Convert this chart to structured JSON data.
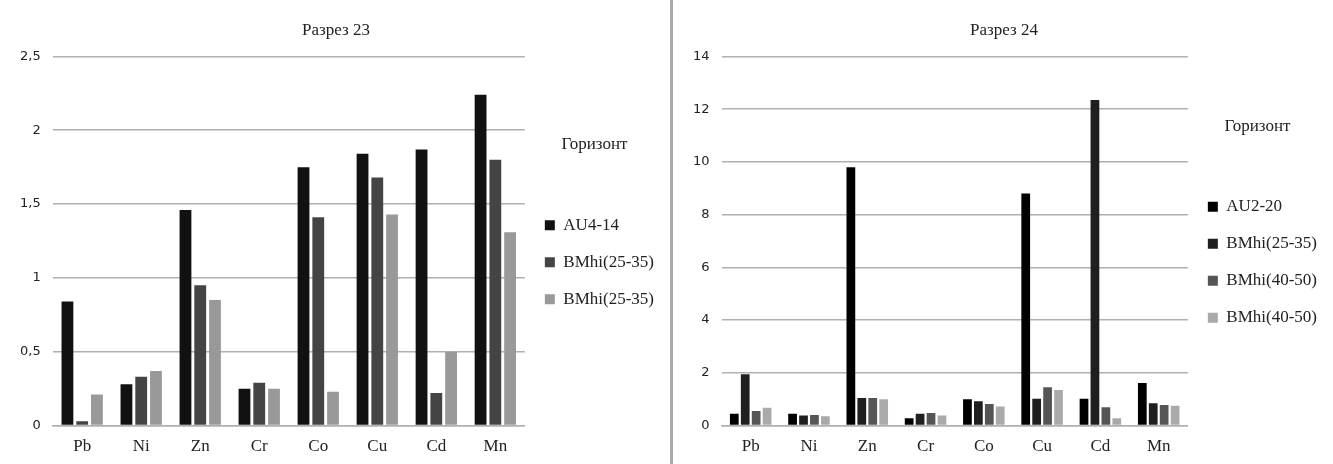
{
  "chart_data": [
    {
      "type": "bar",
      "title": "Разрез 23",
      "legend_title": "Горизонт",
      "categories": [
        "Pb",
        "Ni",
        "Zn",
        "Cr",
        "Co",
        "Cu",
        "Cd",
        "Mn"
      ],
      "series": [
        {
          "name": "AU4-14",
          "color": "#111111",
          "values": [
            0.84,
            0.28,
            1.46,
            0.25,
            1.75,
            1.84,
            1.87,
            2.24
          ]
        },
        {
          "name": "BMhi(25-35)",
          "color": "#444444",
          "values": [
            0.03,
            0.33,
            0.95,
            0.29,
            1.41,
            1.68,
            0.22,
            1.8
          ]
        },
        {
          "name": "BMhi(25-35)",
          "color": "#999999",
          "values": [
            0.21,
            0.37,
            0.85,
            0.25,
            0.23,
            1.43,
            0.5,
            1.31
          ]
        }
      ],
      "ylim": [
        0,
        2.5
      ],
      "yticks": [
        0,
        {
          "value": 0.5,
          "label": "0,5"
        },
        1,
        {
          "value": 1.5,
          "label": "1,5"
        },
        2,
        {
          "value": 2.5,
          "label": "2,5"
        }
      ],
      "grid": "y",
      "legend": "right"
    },
    {
      "type": "bar",
      "title": "Разрез 24",
      "legend_title": "Горизонт",
      "categories": [
        "Pb",
        "Ni",
        "Zn",
        "Cr",
        "Co",
        "Cu",
        "Cd",
        "Mn"
      ],
      "series": [
        {
          "name": "AU2-20",
          "color": "#000000",
          "values": [
            0.45,
            0.45,
            9.8,
            0.28,
            1.0,
            8.8,
            1.02,
            1.62
          ]
        },
        {
          "name": "BMhi(25-35)",
          "color": "#1f1f1f",
          "values": [
            1.95,
            0.38,
            1.05,
            0.45,
            0.92,
            1.02,
            12.35,
            0.85
          ]
        },
        {
          "name": "BMhi(40-50)",
          "color": "#555555",
          "values": [
            0.55,
            0.4,
            1.05,
            0.48,
            0.82,
            1.45,
            0.7,
            0.78
          ]
        },
        {
          "name": "BMhi(40-50)",
          "color": "#aaaaaa",
          "values": [
            0.68,
            0.35,
            1.0,
            0.38,
            0.72,
            1.35,
            0.28,
            0.75
          ]
        }
      ],
      "ylim": [
        0,
        14
      ],
      "yticks": [
        0,
        2,
        4,
        6,
        8,
        10,
        12,
        14
      ],
      "grid": "y",
      "legend": "right"
    }
  ]
}
